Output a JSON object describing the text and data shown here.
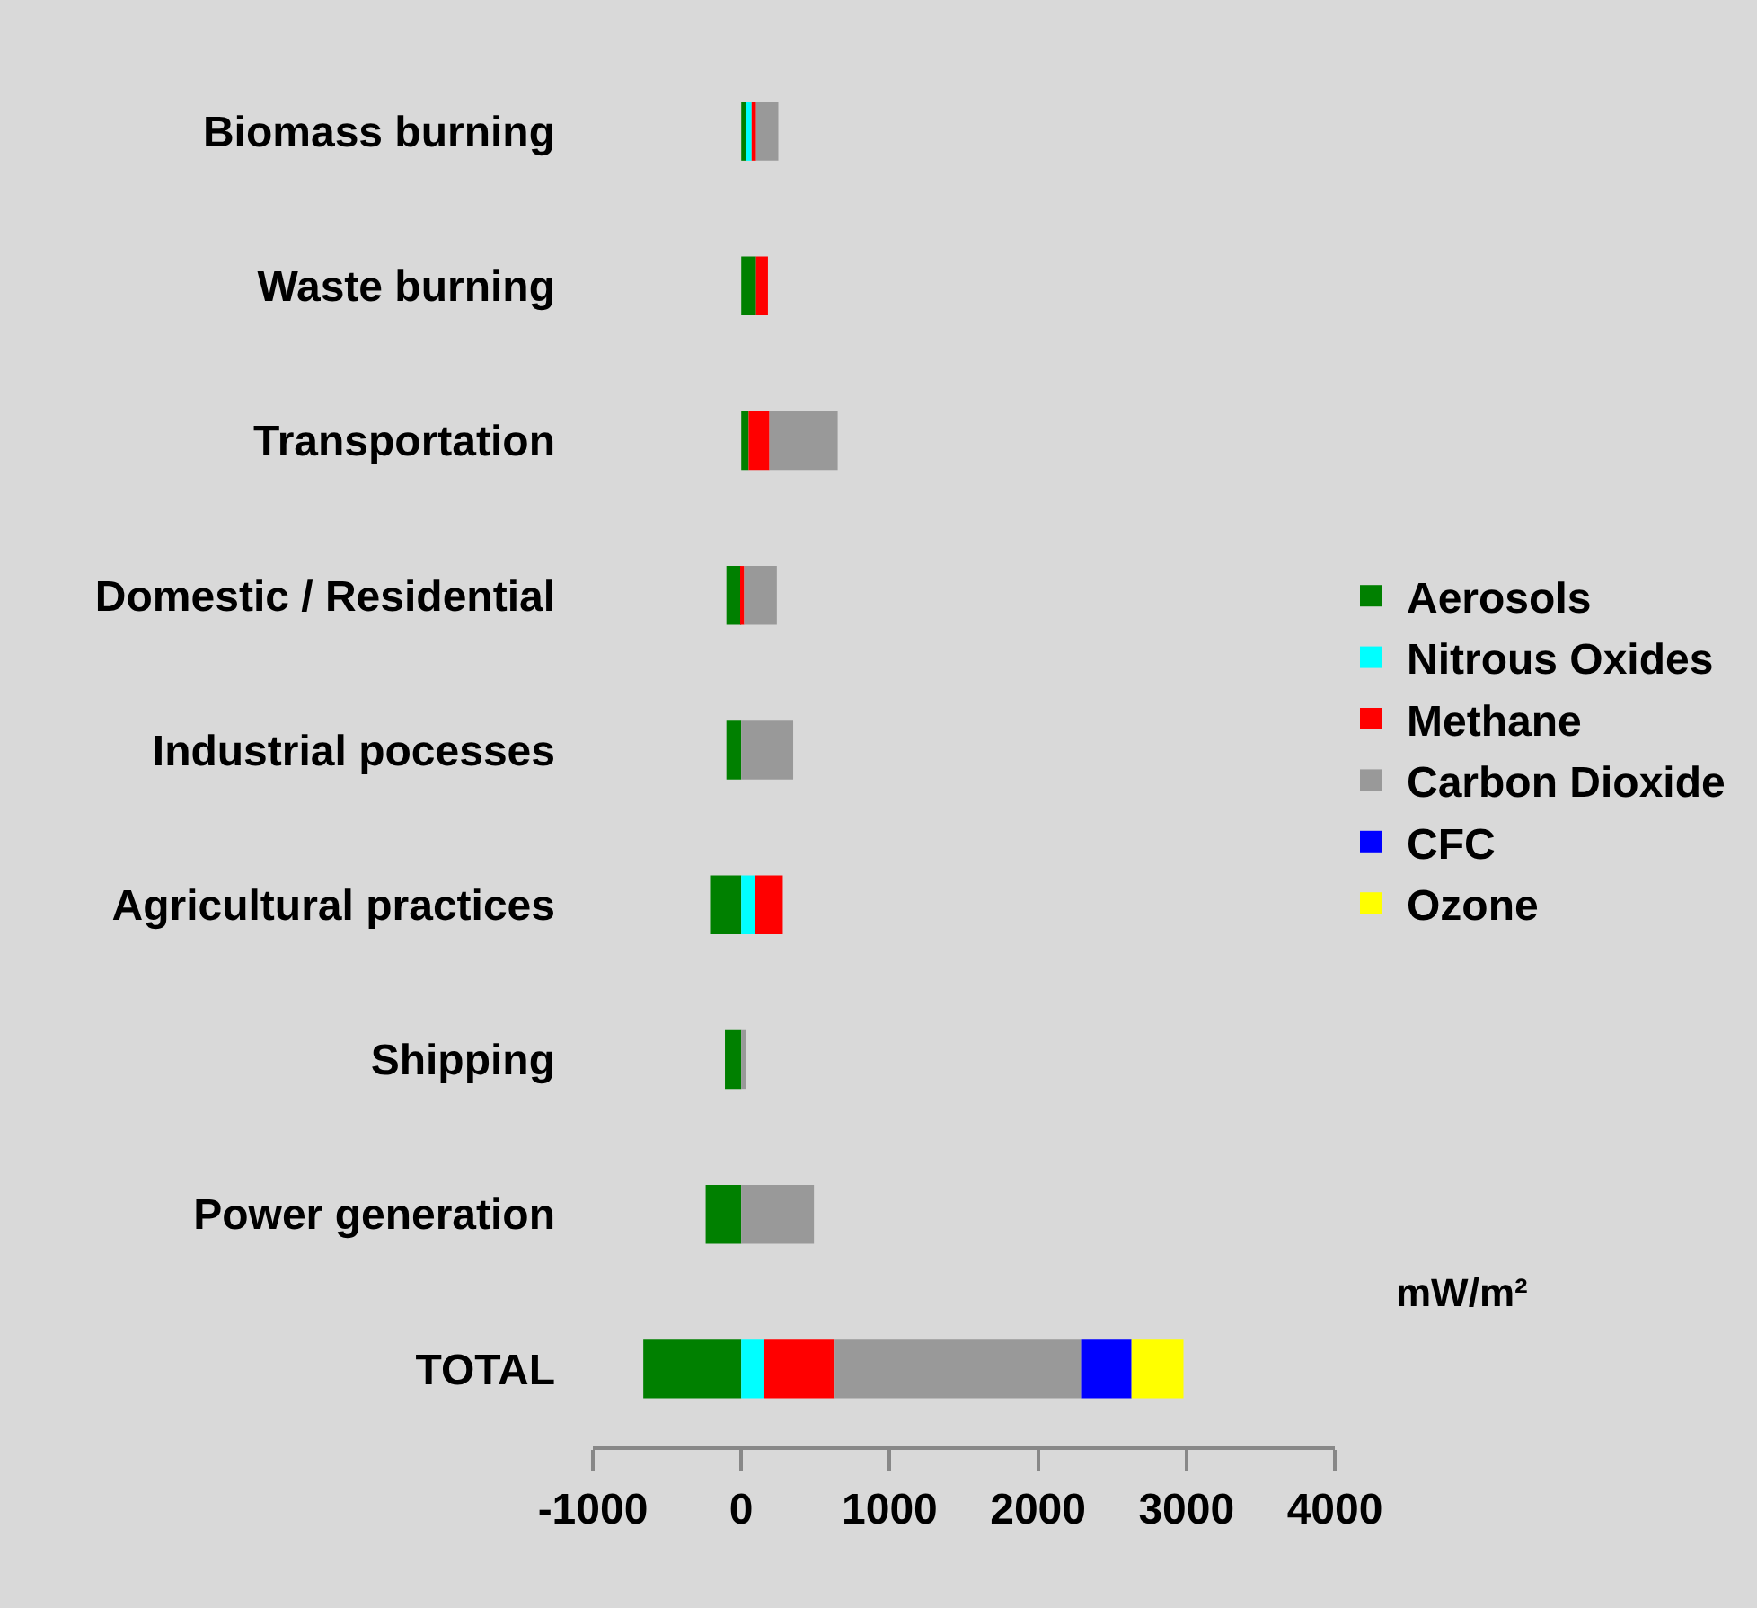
{
  "chart_data": {
    "type": "bar",
    "orientation": "horizontal",
    "stacked": true,
    "categories": [
      "Biomass burning",
      "Waste burning",
      "Transportation",
      "Domestic / Residential",
      "Industrial pocesses",
      "Agricultural practices",
      "Shipping",
      "Power generation",
      "TOTAL"
    ],
    "series": [
      {
        "name": "Aerosols",
        "color": "#008000",
        "values": [
          30,
          100,
          50,
          -100,
          -100,
          -210,
          -110,
          -240,
          -660
        ]
      },
      {
        "name": "Nitrous Oxides",
        "color": "#00ffff",
        "values": [
          40,
          null,
          null,
          null,
          null,
          90,
          null,
          null,
          150
        ]
      },
      {
        "name": "Methane",
        "color": "#ff0000",
        "values": [
          30,
          80,
          140,
          20,
          null,
          190,
          null,
          null,
          480
        ]
      },
      {
        "name": "Carbon Dioxide",
        "color": "#999999",
        "values": [
          150,
          null,
          460,
          220,
          350,
          null,
          30,
          490,
          1660
        ]
      },
      {
        "name": "CFC",
        "color": "#0000ff",
        "values": [
          null,
          null,
          null,
          null,
          null,
          null,
          null,
          null,
          340
        ]
      },
      {
        "name": "Ozone",
        "color": "#ffff00",
        "values": [
          null,
          null,
          null,
          null,
          null,
          null,
          null,
          null,
          350
        ]
      }
    ],
    "xlim": [
      -1000,
      4000
    ],
    "xticks": [
      -1000,
      0,
      1000,
      2000,
      3000,
      4000
    ],
    "xlabel": "mW/m²",
    "grid": false,
    "legend": "right"
  }
}
